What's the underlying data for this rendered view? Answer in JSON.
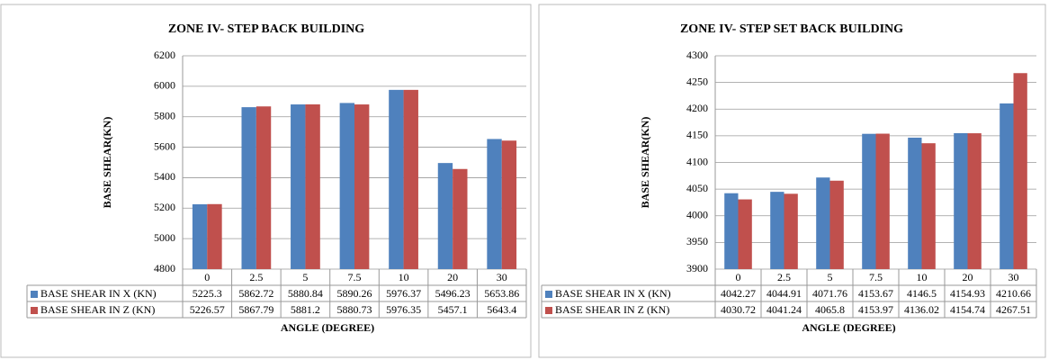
{
  "chart_data": [
    {
      "type": "bar",
      "title": "ZONE IV- STEP BACK BUILDING",
      "x_label": "ANGLE (DEGREE)",
      "y_label": "BASE SHEAR(KN)",
      "categories": [
        "0",
        "2.5",
        "5",
        "7.5",
        "10",
        "20",
        "30"
      ],
      "series": [
        {
          "name": "BASE SHEAR IN X (KN)",
          "color": "#4f81bd",
          "values": [
            5225.3,
            5862.72,
            5880.84,
            5890.26,
            5976.37,
            5496.23,
            5653.86
          ]
        },
        {
          "name": "BASE SHEAR IN Z (KN)",
          "color": "#c0504d",
          "values": [
            5226.57,
            5867.79,
            5881.2,
            5880.73,
            5976.35,
            5457.1,
            5643.4
          ]
        }
      ],
      "ylim": [
        4800,
        6200
      ],
      "yticks": [
        4800,
        5000,
        5200,
        5400,
        5600,
        5800,
        6000,
        6200
      ],
      "grid": true
    },
    {
      "type": "bar",
      "title": "ZONE IV- STEP SET BACK BUILDING",
      "x_label": "ANGLE (DEGREE)",
      "y_label": "BASE SHEAR(KN)",
      "categories": [
        "0",
        "2.5",
        "5",
        "7.5",
        "10",
        "20",
        "30"
      ],
      "series": [
        {
          "name": "BASE SHEAR IN X (KN)",
          "color": "#4f81bd",
          "values": [
            4042.27,
            4044.91,
            4071.76,
            4153.67,
            4146.5,
            4154.93,
            4210.66
          ]
        },
        {
          "name": "BASE SHEAR IN Z (KN)",
          "color": "#c0504d",
          "values": [
            4030.72,
            4041.24,
            4065.8,
            4153.97,
            4136.02,
            4154.74,
            4267.51
          ]
        }
      ],
      "ylim": [
        3900,
        4300
      ],
      "yticks": [
        3900,
        3950,
        4000,
        4050,
        4100,
        4150,
        4200,
        4250,
        4300
      ],
      "grid": true
    }
  ]
}
